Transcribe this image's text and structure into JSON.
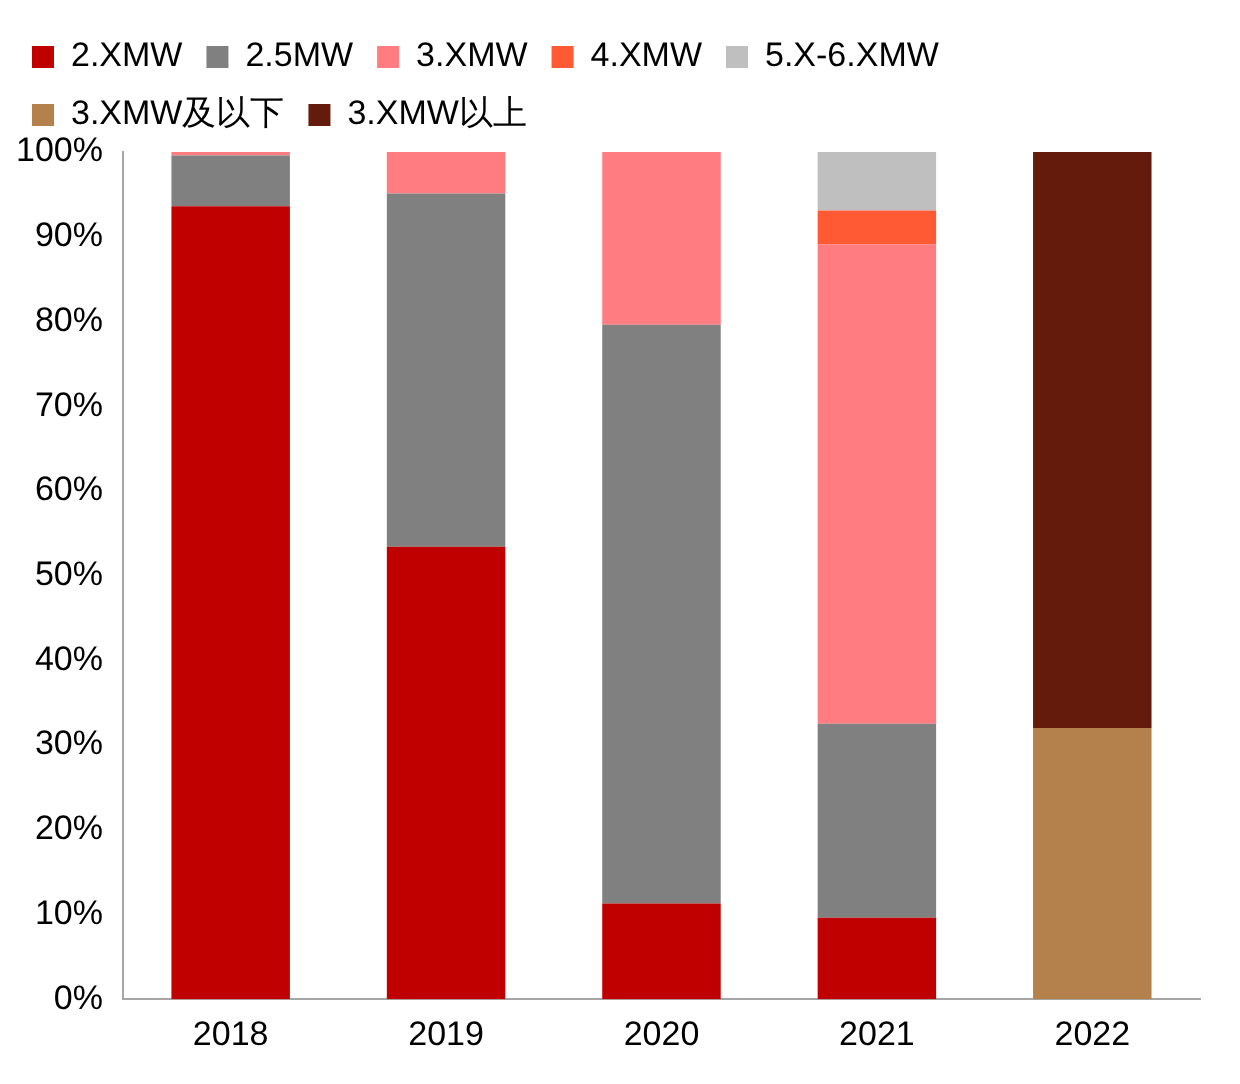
{
  "chart_data": {
    "type": "bar",
    "stacked": true,
    "categories": [
      "2018",
      "2019",
      "2020",
      "2021",
      "2022"
    ],
    "series": [
      {
        "name": "2.XMW",
        "color": "#c00000",
        "values": [
          93.6,
          53.4,
          11.3,
          9.6,
          null
        ]
      },
      {
        "name": "2.5MW",
        "color": "#808080",
        "values": [
          6.0,
          41.7,
          68.3,
          22.9,
          null
        ]
      },
      {
        "name": "3.XMW",
        "color": "#ff7c80",
        "values": [
          0.4,
          4.9,
          20.4,
          56.6,
          null
        ]
      },
      {
        "name": "4.XMW",
        "color": "#ff5a33",
        "values": [
          null,
          null,
          null,
          4.0,
          null
        ]
      },
      {
        "name": "5.X-6.XMW",
        "color": "#bfbfbf",
        "values": [
          null,
          null,
          null,
          6.9,
          null
        ]
      },
      {
        "name": "3.XMW及以下",
        "color": "#b4804b",
        "values": [
          null,
          null,
          null,
          null,
          32.0
        ]
      },
      {
        "name": "3.XMW以上",
        "color": "#641b0b",
        "values": [
          null,
          null,
          null,
          null,
          68.0
        ]
      }
    ],
    "ylim": [
      0,
      100
    ],
    "yticks": [
      {
        "value": 0,
        "label": "0%"
      },
      {
        "value": 10,
        "label": "10%"
      },
      {
        "value": 20,
        "label": "20%"
      },
      {
        "value": 30,
        "label": "30%"
      },
      {
        "value": 40,
        "label": "40%"
      },
      {
        "value": 50,
        "label": "50%"
      },
      {
        "value": 60,
        "label": "60%"
      },
      {
        "value": 70,
        "label": "70%"
      },
      {
        "value": 80,
        "label": "80%"
      },
      {
        "value": 90,
        "label": "90%"
      },
      {
        "value": 100,
        "label": "100%"
      }
    ],
    "grid": false,
    "legend": "top"
  }
}
